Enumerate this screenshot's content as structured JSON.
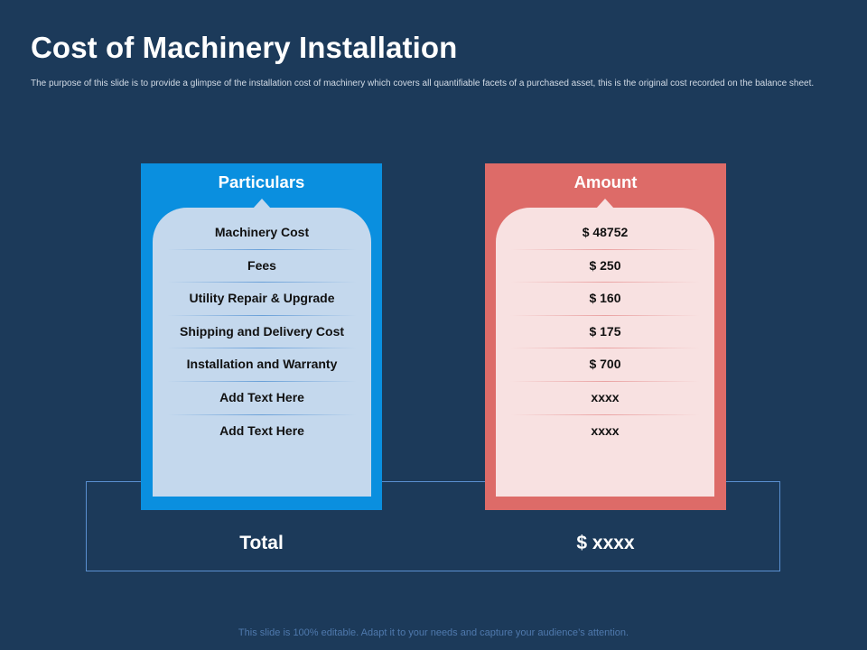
{
  "slide": {
    "title": "Cost of Machinery Installation",
    "subtitle": "The purpose of this slide is to provide a glimpse of the installation cost of machinery which covers all quantifiable facets of a purchased asset, this is the original cost recorded on the balance sheet.",
    "footer": "This slide is 100% editable. Adapt it to your needs and capture your audience’s attention."
  },
  "table": {
    "particulars_header": "Particulars",
    "amount_header": "Amount",
    "rows": [
      {
        "particular": "Machinery Cost",
        "amount": "$ 48752"
      },
      {
        "particular": "Fees",
        "amount": "$ 250"
      },
      {
        "particular": "Utility Repair & Upgrade",
        "amount": "$ 160"
      },
      {
        "particular": "Shipping and Delivery Cost",
        "amount": "$ 175"
      },
      {
        "particular": "Installation and Warranty",
        "amount": "$ 700"
      },
      {
        "particular": "Add Text Here",
        "amount": "xxxx"
      },
      {
        "particular": "Add Text Here",
        "amount": "xxxx"
      }
    ],
    "total_label": "Total",
    "total_value": "$ xxxx"
  },
  "colors": {
    "background": "#1c3a5a",
    "particulars_panel": "#0a8fdf",
    "amount_panel": "#dd6b68"
  }
}
